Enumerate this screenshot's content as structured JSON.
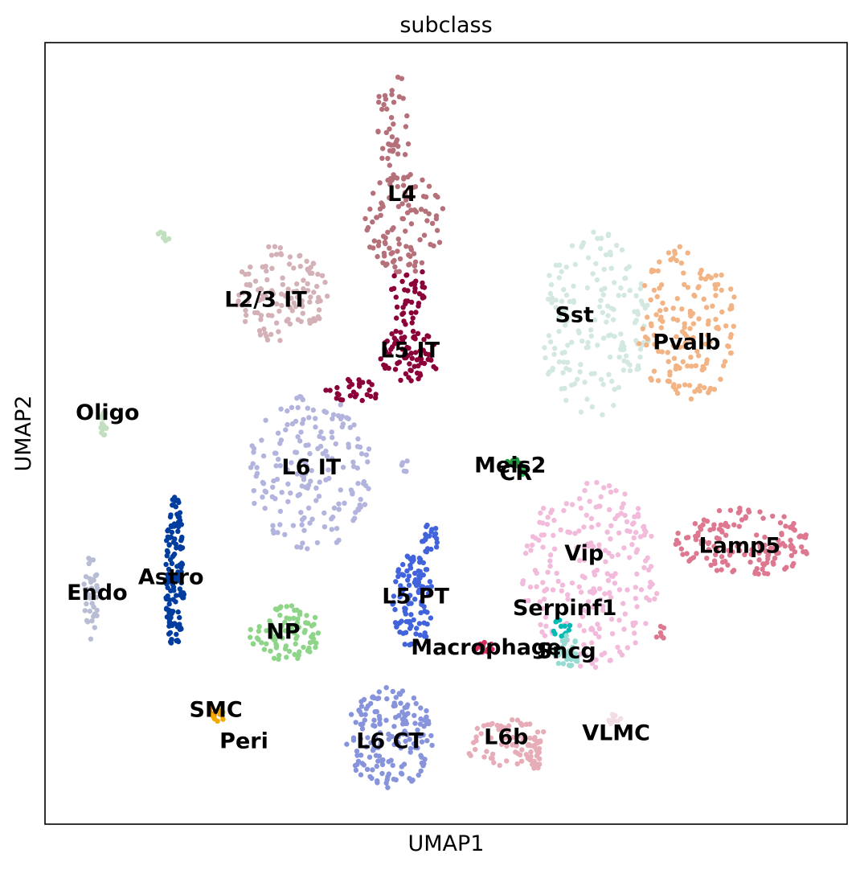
{
  "chart_data": {
    "type": "scatter",
    "title": "subclass",
    "xlabel": "UMAP1",
    "ylabel": "UMAP2",
    "xlim": [
      0,
      100
    ],
    "ylim": [
      0,
      100
    ],
    "grid": false,
    "legend": "on data",
    "series": [
      {
        "name": "L4",
        "color": "#b5707a",
        "label_pos": [
          44.5,
          80.5
        ],
        "clusters": [
          {
            "cx": 43.5,
            "cy": 90,
            "rx": 2.2,
            "ry": 6.5,
            "n": 40
          },
          {
            "cx": 44.8,
            "cy": 77,
            "rx": 5.0,
            "ry": 6.5,
            "n": 110
          }
        ]
      },
      {
        "name": "L5 IT",
        "color": "#8b0038",
        "label_pos": [
          45.5,
          60.5
        ],
        "clusters": [
          {
            "cx": 45.3,
            "cy": 68,
            "rx": 2.2,
            "ry": 4.5,
            "n": 40
          },
          {
            "cx": 45.5,
            "cy": 60,
            "rx": 3.8,
            "ry": 3.5,
            "n": 75
          },
          {
            "cx": 38.5,
            "cy": 55.5,
            "rx": 3.5,
            "ry": 1.5,
            "n": 28
          }
        ]
      },
      {
        "name": "L2/3 IT",
        "color": "#d4b1b7",
        "label_pos": [
          27.5,
          67
        ],
        "clusters": [
          {
            "cx": 29.5,
            "cy": 68,
            "rx": 5.8,
            "ry": 6.5,
            "n": 120
          }
        ]
      },
      {
        "name": "Sst",
        "color": "#d4e8e2",
        "label_pos": [
          66,
          65
        ],
        "clusters": [
          {
            "cx": 68.5,
            "cy": 64,
            "rx": 7.0,
            "ry": 12.0,
            "n": 170
          }
        ]
      },
      {
        "name": "Pvalb",
        "color": "#f2b485",
        "label_pos": [
          80,
          61.5
        ],
        "clusters": [
          {
            "cx": 80,
            "cy": 64,
            "rx": 6.5,
            "ry": 10.0,
            "n": 160
          }
        ]
      },
      {
        "name": "Oligo",
        "color": "#c2dfc0",
        "label_pos": [
          7.8,
          52.5
        ],
        "clusters": [
          {
            "cx": 7.3,
            "cy": 51,
            "rx": 0.6,
            "ry": 2.0,
            "n": 14
          },
          {
            "cx": 14.7,
            "cy": 75,
            "rx": 0.8,
            "ry": 0.9,
            "n": 8
          }
        ]
      },
      {
        "name": "L6 IT",
        "color": "#b2b4de",
        "label_pos": [
          33.2,
          45.5
        ],
        "clusters": [
          {
            "cx": 33,
            "cy": 45,
            "rx": 7.8,
            "ry": 10.0,
            "n": 180
          },
          {
            "cx": 44.8,
            "cy": 46,
            "rx": 0.5,
            "ry": 1.2,
            "n": 6
          }
        ]
      },
      {
        "name": "Meis2",
        "color": "#1e9b3a",
        "label_pos": [
          58,
          45.8
        ],
        "clusters": [
          {
            "cx": 58.4,
            "cy": 46.2,
            "rx": 0.8,
            "ry": 0.6,
            "n": 12
          }
        ]
      },
      {
        "name": "CR",
        "color": "#2fbf50",
        "label_pos": [
          58.7,
          44.8
        ],
        "clusters": [
          {
            "cx": 59.3,
            "cy": 45.3,
            "rx": 0.5,
            "ry": 0.8,
            "n": 5
          }
        ]
      },
      {
        "name": "Vip",
        "color": "#f2bbdb",
        "label_pos": [
          67.2,
          34.5
        ],
        "clusters": [
          {
            "cx": 68,
            "cy": 32,
            "rx": 8.5,
            "ry": 12.0,
            "n": 230
          }
        ]
      },
      {
        "name": "Lamp5",
        "color": "#dd7890",
        "label_pos": [
          86.6,
          35.5
        ],
        "clusters": [
          {
            "cx": 87,
            "cy": 36,
            "rx": 8.5,
            "ry": 4.5,
            "n": 150
          },
          {
            "cx": 76.7,
            "cy": 24.5,
            "rx": 0.6,
            "ry": 1.0,
            "n": 6
          }
        ]
      },
      {
        "name": "Astro",
        "color": "#003d9f",
        "label_pos": [
          15.7,
          31.5
        ],
        "clusters": [
          {
            "cx": 16.2,
            "cy": 32,
            "rx": 1.2,
            "ry": 10.0,
            "n": 140
          }
        ]
      },
      {
        "name": "Endo",
        "color": "#b8bdd3",
        "label_pos": [
          6.5,
          29.5
        ],
        "clusters": [
          {
            "cx": 5.7,
            "cy": 29,
            "rx": 0.9,
            "ry": 5.5,
            "n": 40
          }
        ]
      },
      {
        "name": "L5 PT",
        "color": "#4163db",
        "label_pos": [
          46.2,
          29
        ],
        "clusters": [
          {
            "cx": 45.8,
            "cy": 28.5,
            "rx": 2.6,
            "ry": 6.0,
            "n": 100
          },
          {
            "cx": 48,
            "cy": 36.5,
            "rx": 1.0,
            "ry": 2.0,
            "n": 20
          }
        ]
      },
      {
        "name": "Serpinf1",
        "color": "#00bcb5",
        "label_pos": [
          64.8,
          27.5
        ],
        "clusters": [
          {
            "cx": 64.5,
            "cy": 25,
            "rx": 1.5,
            "ry": 1.2,
            "n": 12
          }
        ]
      },
      {
        "name": "NP",
        "color": "#8ed589",
        "label_pos": [
          29.7,
          24.5
        ],
        "clusters": [
          {
            "cx": 30,
            "cy": 24.5,
            "rx": 4.5,
            "ry": 3.5,
            "n": 90
          }
        ]
      },
      {
        "name": "Macrophage",
        "color": "#d52e5a",
        "label_pos": [
          55,
          22.5
        ],
        "clusters": [
          {
            "cx": 54.8,
            "cy": 22.5,
            "rx": 1.2,
            "ry": 0.8,
            "n": 14
          }
        ]
      },
      {
        "name": "Sncg",
        "color": "#95dbd2",
        "label_pos": [
          65,
          22
        ],
        "clusters": [
          {
            "cx": 65,
            "cy": 22,
            "rx": 1.6,
            "ry": 2.2,
            "n": 35
          }
        ]
      },
      {
        "name": "SMC",
        "color": "#dd7d0e",
        "label_pos": [
          21.3,
          14.5
        ],
        "clusters": [
          {
            "cx": 21.3,
            "cy": 14.5,
            "rx": 0.9,
            "ry": 0.8,
            "n": 8
          }
        ]
      },
      {
        "name": "Peri",
        "color": "#f2a900",
        "label_pos": [
          24.8,
          10.5
        ],
        "clusters": [
          {
            "cx": 21.6,
            "cy": 13.8,
            "rx": 0.9,
            "ry": 0.8,
            "n": 10
          }
        ]
      },
      {
        "name": "L6 CT",
        "color": "#8794db",
        "label_pos": [
          43,
          10.5
        ],
        "clusters": [
          {
            "cx": 43,
            "cy": 11,
            "rx": 5.5,
            "ry": 6.5,
            "n": 170
          }
        ]
      },
      {
        "name": "L6b",
        "color": "#e6adb8",
        "label_pos": [
          57.5,
          11
        ],
        "clusters": [
          {
            "cx": 57.3,
            "cy": 10.5,
            "rx": 5.5,
            "ry": 3.0,
            "n": 70
          },
          {
            "cx": 61,
            "cy": 9,
            "rx": 1.0,
            "ry": 2.5,
            "n": 20
          }
        ]
      },
      {
        "name": "VLMC",
        "color": "#f2dde2",
        "label_pos": [
          71.2,
          11.5
        ],
        "clusters": [
          {
            "cx": 70.8,
            "cy": 13.5,
            "rx": 1.0,
            "ry": 0.7,
            "n": 10
          }
        ]
      }
    ]
  }
}
